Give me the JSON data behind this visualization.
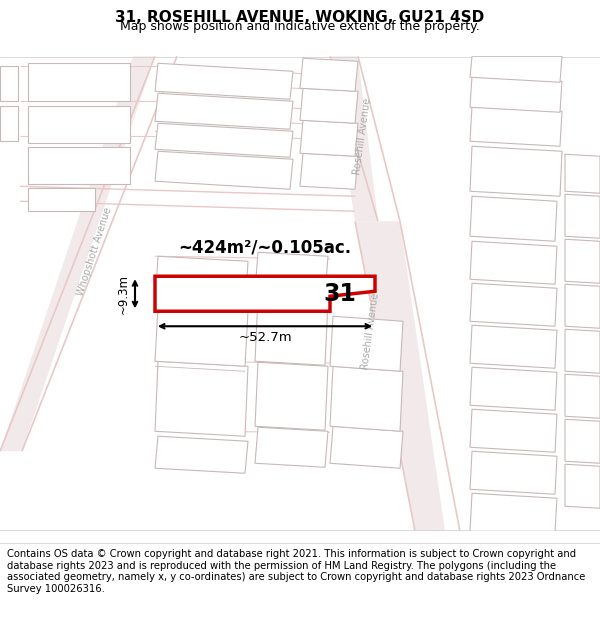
{
  "title": "31, ROSEHILL AVENUE, WOKING, GU21 4SD",
  "subtitle": "Map shows position and indicative extent of the property.",
  "footer": "Contains OS data © Crown copyright and database right 2021. This information is subject to Crown copyright and database rights 2023 and is reproduced with the permission of HM Land Registry. The polygons (including the associated geometry, namely x, y co-ordinates) are subject to Crown copyright and database rights 2023 Ordnance Survey 100026316.",
  "map_bg": "#f7f4f4",
  "road_color": "#e8c8c8",
  "road_fill": "#f2eaea",
  "building_color": "#e0dada",
  "building_edge": "#c8b8b8",
  "highlight_color": "#cc0000",
  "area_text": "~424m²/~0.105ac.",
  "width_text": "~52.7m",
  "height_text": "~9.3m",
  "number_text": "31",
  "title_fontsize": 11,
  "subtitle_fontsize": 9,
  "footer_fontsize": 7.2,
  "road_label_color": "#aaaaaa",
  "road_label_size": 7
}
